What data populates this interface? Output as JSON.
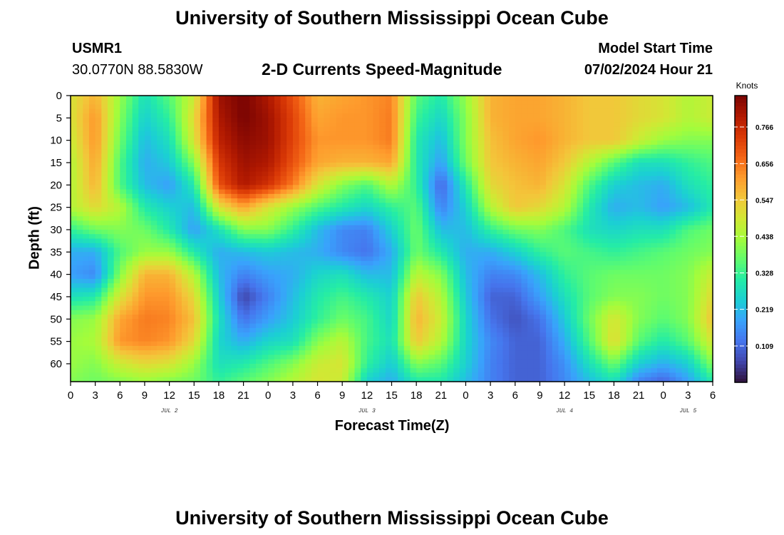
{
  "header": {
    "title": "University of Southern Mississippi Ocean Cube",
    "station": "USMR1",
    "coords": "30.0770N  88.5830W",
    "subtitle": "2-D Currents Speed-Magnitude",
    "model_label": "Model Start Time",
    "model_time": "07/02/2024 Hour 21"
  },
  "footer": {
    "title": "University of Southern Mississippi Ocean Cube"
  },
  "chart_data": {
    "type": "heatmap",
    "title": "2-D Currents Speed-Magnitude",
    "xlabel": "Forecast Time(Z)",
    "ylabel": "Depth (ft)",
    "x_ticks": [
      "0",
      "3",
      "6",
      "9",
      "12",
      "15",
      "18",
      "21",
      "0",
      "3",
      "6",
      "9",
      "12",
      "15",
      "18",
      "21",
      "0",
      "3",
      "6",
      "9",
      "12",
      "15",
      "18",
      "21",
      "0",
      "3",
      "6"
    ],
    "x_day_labels": [
      {
        "label": "JUL 2",
        "tick_index": 4
      },
      {
        "label": "JUL 3",
        "tick_index": 12
      },
      {
        "label": "JUL 4",
        "tick_index": 20
      },
      {
        "label": "JUL 5",
        "tick_index": 25
      }
    ],
    "x_range_hours": [
      0,
      78
    ],
    "y_ticks": [
      "0",
      "5",
      "10",
      "15",
      "20",
      "25",
      "30",
      "35",
      "40",
      "45",
      "50",
      "55",
      "60"
    ],
    "y_range_ft": [
      0,
      64
    ],
    "y_inverted": true,
    "colorbar": {
      "unit": "Knots",
      "ticks": [
        "0.766",
        "0.656",
        "0.547",
        "0.438",
        "0.328",
        "0.219",
        "0.109"
      ],
      "range": [
        0.0,
        0.86
      ]
    },
    "colors": [
      "#30123b",
      "#4145ab",
      "#4675ed",
      "#39a2fc",
      "#1bcfd4",
      "#24eca6",
      "#61fc6c",
      "#a4fc3b",
      "#d1e834",
      "#f3c63a",
      "#fe9b2d",
      "#f36315",
      "#d93806",
      "#b11901",
      "#7a0403"
    ],
    "sample_grid": {
      "x_hours": [
        0,
        3,
        6,
        9,
        12,
        15,
        18,
        21,
        24,
        27,
        30,
        33,
        36,
        39,
        42,
        45,
        48,
        51,
        54,
        57,
        60,
        63,
        66,
        69,
        72,
        75,
        78
      ],
      "y_depth_ft": [
        0,
        5,
        10,
        15,
        20,
        25,
        30,
        35,
        40,
        45,
        50,
        55,
        60,
        64
      ],
      "values_knots": [
        [
          0.5,
          0.58,
          0.42,
          0.28,
          0.36,
          0.48,
          0.82,
          0.86,
          0.8,
          0.7,
          0.58,
          0.6,
          0.62,
          0.64,
          0.36,
          0.3,
          0.42,
          0.58,
          0.6,
          0.6,
          0.58,
          0.55,
          0.55,
          0.52,
          0.5,
          0.45,
          0.48
        ],
        [
          0.5,
          0.62,
          0.4,
          0.25,
          0.32,
          0.52,
          0.8,
          0.86,
          0.82,
          0.72,
          0.6,
          0.62,
          0.62,
          0.65,
          0.33,
          0.26,
          0.4,
          0.58,
          0.6,
          0.6,
          0.58,
          0.55,
          0.55,
          0.52,
          0.5,
          0.45,
          0.48
        ],
        [
          0.48,
          0.62,
          0.38,
          0.22,
          0.28,
          0.5,
          0.78,
          0.84,
          0.82,
          0.72,
          0.62,
          0.62,
          0.62,
          0.65,
          0.3,
          0.22,
          0.4,
          0.56,
          0.6,
          0.62,
          0.58,
          0.55,
          0.55,
          0.48,
          0.42,
          0.4,
          0.4
        ],
        [
          0.45,
          0.6,
          0.35,
          0.2,
          0.24,
          0.4,
          0.74,
          0.82,
          0.8,
          0.7,
          0.6,
          0.58,
          0.58,
          0.6,
          0.3,
          0.18,
          0.38,
          0.55,
          0.58,
          0.6,
          0.55,
          0.45,
          0.36,
          0.28,
          0.28,
          0.32,
          0.35
        ],
        [
          0.45,
          0.58,
          0.35,
          0.22,
          0.18,
          0.3,
          0.7,
          0.8,
          0.75,
          0.65,
          0.5,
          0.4,
          0.35,
          0.45,
          0.32,
          0.1,
          0.3,
          0.52,
          0.56,
          0.58,
          0.5,
          0.35,
          0.25,
          0.22,
          0.2,
          0.28,
          0.32
        ],
        [
          0.45,
          0.52,
          0.45,
          0.3,
          0.25,
          0.22,
          0.5,
          0.6,
          0.5,
          0.42,
          0.35,
          0.3,
          0.26,
          0.32,
          0.36,
          0.14,
          0.25,
          0.45,
          0.55,
          0.52,
          0.45,
          0.3,
          0.2,
          0.22,
          0.18,
          0.22,
          0.3
        ],
        [
          0.32,
          0.38,
          0.4,
          0.38,
          0.3,
          0.18,
          0.28,
          0.4,
          0.4,
          0.32,
          0.22,
          0.15,
          0.14,
          0.25,
          0.38,
          0.22,
          0.22,
          0.32,
          0.38,
          0.4,
          0.35,
          0.28,
          0.26,
          0.28,
          0.28,
          0.35,
          0.38
        ],
        [
          0.2,
          0.2,
          0.35,
          0.42,
          0.42,
          0.3,
          0.2,
          0.22,
          0.24,
          0.22,
          0.2,
          0.15,
          0.12,
          0.2,
          0.38,
          0.3,
          0.2,
          0.2,
          0.25,
          0.32,
          0.36,
          0.34,
          0.32,
          0.34,
          0.36,
          0.38,
          0.4
        ],
        [
          0.18,
          0.15,
          0.4,
          0.58,
          0.58,
          0.45,
          0.22,
          0.14,
          0.18,
          0.2,
          0.26,
          0.28,
          0.22,
          0.22,
          0.46,
          0.4,
          0.22,
          0.14,
          0.15,
          0.22,
          0.32,
          0.36,
          0.38,
          0.38,
          0.38,
          0.4,
          0.48
        ],
        [
          0.28,
          0.3,
          0.5,
          0.62,
          0.62,
          0.52,
          0.25,
          0.06,
          0.14,
          0.22,
          0.3,
          0.34,
          0.3,
          0.25,
          0.55,
          0.45,
          0.24,
          0.1,
          0.1,
          0.18,
          0.28,
          0.36,
          0.4,
          0.4,
          0.38,
          0.4,
          0.52
        ],
        [
          0.4,
          0.42,
          0.6,
          0.65,
          0.64,
          0.56,
          0.28,
          0.12,
          0.18,
          0.24,
          0.32,
          0.38,
          0.34,
          0.26,
          0.58,
          0.48,
          0.26,
          0.12,
          0.08,
          0.12,
          0.24,
          0.38,
          0.5,
          0.4,
          0.36,
          0.4,
          0.56
        ],
        [
          0.42,
          0.44,
          0.62,
          0.64,
          0.62,
          0.52,
          0.26,
          0.2,
          0.26,
          0.28,
          0.4,
          0.46,
          0.34,
          0.28,
          0.55,
          0.45,
          0.26,
          0.15,
          0.1,
          0.1,
          0.2,
          0.35,
          0.52,
          0.36,
          0.3,
          0.36,
          0.5
        ],
        [
          0.42,
          0.4,
          0.48,
          0.52,
          0.5,
          0.42,
          0.28,
          0.3,
          0.35,
          0.4,
          0.48,
          0.5,
          0.32,
          0.24,
          0.4,
          0.36,
          0.25,
          0.14,
          0.1,
          0.1,
          0.16,
          0.28,
          0.38,
          0.25,
          0.2,
          0.25,
          0.4
        ],
        [
          0.4,
          0.38,
          0.4,
          0.42,
          0.4,
          0.38,
          0.32,
          0.36,
          0.4,
          0.45,
          0.5,
          0.48,
          0.25,
          0.2,
          0.3,
          0.3,
          0.22,
          0.14,
          0.1,
          0.1,
          0.15,
          0.22,
          0.28,
          0.14,
          0.1,
          0.18,
          0.3
        ]
      ]
    }
  }
}
